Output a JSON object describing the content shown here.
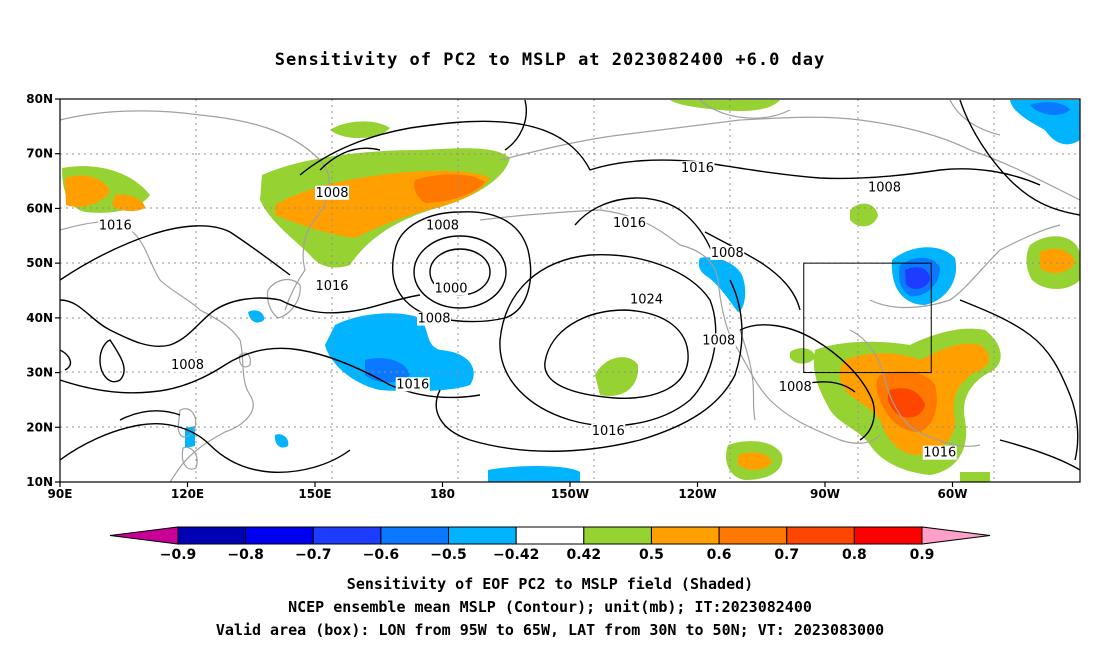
{
  "title": "Sensitivity of PC2 to MSLP at 2023082400 +6.0 day",
  "lat_labels": [
    "80N",
    "70N",
    "60N",
    "50N",
    "40N",
    "30N",
    "20N",
    "10N"
  ],
  "lon_labels": [
    "90E",
    "120E",
    "150E",
    "180",
    "150W",
    "120W",
    "90W",
    "60W"
  ],
  "contour_labels": [
    {
      "text": "1008",
      "lon": 154,
      "lat": 62.5
    },
    {
      "text": "1016",
      "lon": 103,
      "lat": 56.5
    },
    {
      "text": "1008",
      "lon": 180,
      "lat": 56.5
    },
    {
      "text": "1016",
      "lon": -136,
      "lat": 57
    },
    {
      "text": "1016",
      "lon": -120,
      "lat": 67
    },
    {
      "text": "1008",
      "lon": -76,
      "lat": 63.5
    },
    {
      "text": "1008",
      "lon": -113,
      "lat": 51.5
    },
    {
      "text": "1016",
      "lon": 154,
      "lat": 45.5
    },
    {
      "text": "1000",
      "lon": 182,
      "lat": 45
    },
    {
      "text": "1008",
      "lon": 178,
      "lat": 39.5
    },
    {
      "text": "1024",
      "lon": -132,
      "lat": 43
    },
    {
      "text": "1008",
      "lon": -115,
      "lat": 35.5
    },
    {
      "text": "1008",
      "lon": 120,
      "lat": 31
    },
    {
      "text": "1016",
      "lon": 173,
      "lat": 27.5
    },
    {
      "text": "1008",
      "lon": -97,
      "lat": 27
    },
    {
      "text": "1016",
      "lon": -141,
      "lat": 19
    },
    {
      "text": "1016",
      "lon": -63,
      "lat": 15
    }
  ],
  "valid_box": {
    "lon_west": -95,
    "lon_east": -65,
    "lat_south": 30,
    "lat_north": 50
  },
  "colorbar": {
    "labels": [
      "-0.9",
      "-0.8",
      "-0.7",
      "-0.6",
      "-0.5",
      "-0.42",
      "0.42",
      "0.5",
      "0.6",
      "0.7",
      "0.8",
      "0.9"
    ],
    "colors": [
      "#0000b4",
      "#0000f0",
      "#1e3cff",
      "#0a78ff",
      "#00b4ff",
      "#ffffff",
      "#96d232",
      "#ffa000",
      "#ff7800",
      "#ff4600",
      "#ff0000"
    ],
    "low_color": "#c80096",
    "high_color": "#ffa0c8"
  },
  "footer": [
    "Sensitivity of EOF PC2 to MSLP field (Shaded)",
    "NCEP ensemble mean MSLP (Contour); unit(mb); IT:2023082400",
    "Valid area (box): LON from 95W to 65W, LAT from 30N to 50N; VT: 2023083000"
  ]
}
